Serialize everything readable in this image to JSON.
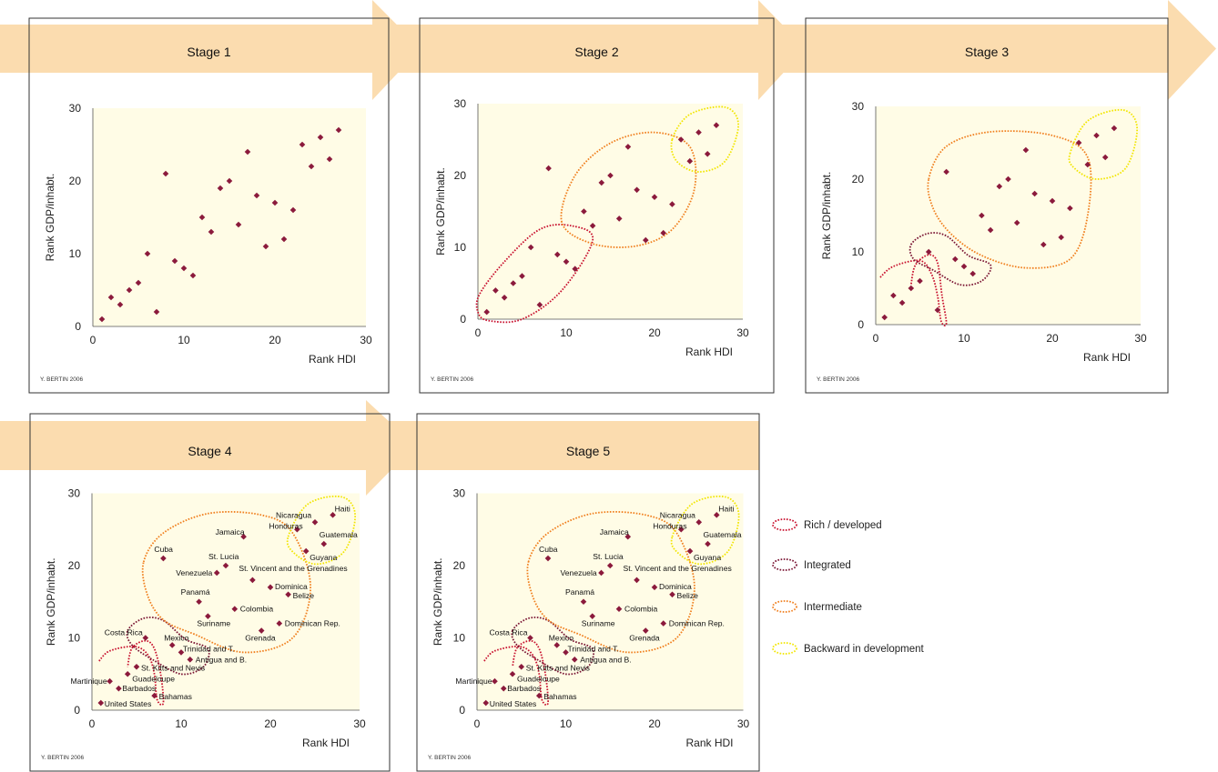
{
  "colors": {
    "arrow": "#fbdcaf",
    "plot_bg": "#fffce6",
    "marker": "#8b1a3c",
    "rich": "#c8102e",
    "integrated": "#7a1433",
    "intermediate": "#f07f1e",
    "backward": "#f2e600"
  },
  "legend": [
    {
      "key": "rich",
      "label": "Rich / developed"
    },
    {
      "key": "integrated",
      "label": "Integrated"
    },
    {
      "key": "intermediate",
      "label": "Intermediate"
    },
    {
      "key": "backward",
      "label": "Backward in development"
    }
  ],
  "chart_data": [
    {
      "type": "scatter",
      "title": "Stage 1",
      "xlabel": "Rank HDI",
      "ylabel": "Rank GDP/inhabt.",
      "xlim": [
        0,
        30
      ],
      "ylim": [
        0,
        30
      ],
      "credit": "Y. BERTIN 2006",
      "show_labels": false,
      "groups": []
    },
    {
      "type": "scatter",
      "title": "Stage 2",
      "xlabel": "Rank HDI",
      "ylabel": "Rank GDP/inhabt.",
      "xlim": [
        0,
        30
      ],
      "ylim": [
        0,
        30
      ],
      "credit": "Y. BERTIN 2006",
      "show_labels": false,
      "groups": [
        "rich",
        "intermediate",
        "backward"
      ]
    },
    {
      "type": "scatter",
      "title": "Stage 3",
      "xlabel": "Rank HDI",
      "ylabel": "Rank GDP/inhabt.",
      "xlim": [
        0,
        30
      ],
      "ylim": [
        0,
        30
      ],
      "credit": "Y. BERTIN 2006",
      "show_labels": false,
      "groups": [
        "rich",
        "integrated",
        "intermediate",
        "backward"
      ]
    },
    {
      "type": "scatter",
      "title": "Stage 4",
      "xlabel": "Rank HDI",
      "ylabel": "Rank GDP/inhabt.",
      "xlim": [
        0,
        30
      ],
      "ylim": [
        0,
        30
      ],
      "credit": "Y. BERTIN 2006",
      "show_labels": true,
      "groups": [
        "rich",
        "integrated",
        "intermediate",
        "backward"
      ]
    },
    {
      "type": "scatter",
      "title": "Stage 5",
      "xlabel": "Rank HDI",
      "ylabel": "Rank GDP/inhabt.",
      "xlim": [
        0,
        30
      ],
      "ylim": [
        0,
        30
      ],
      "credit": "Y. BERTIN 2006",
      "show_labels": true,
      "groups": [
        "rich",
        "integrated",
        "intermediate",
        "backward"
      ]
    }
  ],
  "points": [
    {
      "name": "United States",
      "x": 1,
      "y": 1
    },
    {
      "name": "Martinique",
      "x": 2,
      "y": 4
    },
    {
      "name": "Barbados",
      "x": 3,
      "y": 3
    },
    {
      "name": "Guadeloupe",
      "x": 4,
      "y": 5
    },
    {
      "name": "St. Kitts and Nevis",
      "x": 5,
      "y": 6
    },
    {
      "name": "Costa Rica",
      "x": 6,
      "y": 10
    },
    {
      "name": "Bahamas",
      "x": 7,
      "y": 2
    },
    {
      "name": "Cuba",
      "x": 8,
      "y": 21
    },
    {
      "name": "Mexico",
      "x": 9,
      "y": 9
    },
    {
      "name": "Trinidad and T.",
      "x": 10,
      "y": 8
    },
    {
      "name": "Antigua and B.",
      "x": 11,
      "y": 7
    },
    {
      "name": "Panamá",
      "x": 12,
      "y": 15
    },
    {
      "name": "Suriname",
      "x": 13,
      "y": 13
    },
    {
      "name": "Venezuela",
      "x": 14,
      "y": 19
    },
    {
      "name": "St. Lucia",
      "x": 15,
      "y": 20
    },
    {
      "name": "Colombia",
      "x": 16,
      "y": 14
    },
    {
      "name": "Jamaica",
      "x": 17,
      "y": 24
    },
    {
      "name": "St. Vincent and the Grenadines",
      "x": 18,
      "y": 18
    },
    {
      "name": "Grenada",
      "x": 19,
      "y": 11
    },
    {
      "name": "Dominica",
      "x": 20,
      "y": 17
    },
    {
      "name": "Dominican Rep.",
      "x": 21,
      "y": 12
    },
    {
      "name": "Belize",
      "x": 22,
      "y": 16
    },
    {
      "name": "Honduras",
      "x": 23,
      "y": 25
    },
    {
      "name": "Guyana",
      "x": 24,
      "y": 22
    },
    {
      "name": "Nicaragua",
      "x": 25,
      "y": 26
    },
    {
      "name": "Guatemala",
      "x": 26,
      "y": 23
    },
    {
      "name": "Haiti",
      "x": 27,
      "y": 27
    }
  ]
}
